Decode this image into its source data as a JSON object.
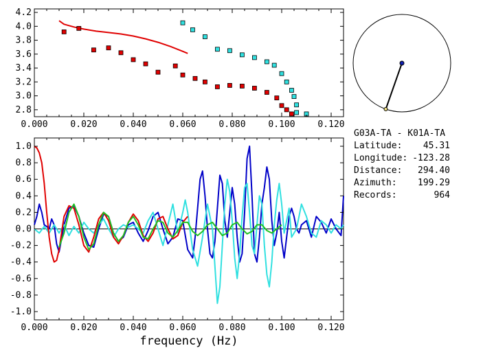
{
  "chart_data": [
    {
      "type": "scatter",
      "name": "dispersion-panel",
      "xlim": [
        0.0,
        0.125
      ],
      "ylim": [
        2.7,
        4.25
      ],
      "x_ticks": [
        "0.000",
        "0.020",
        "0.040",
        "0.060",
        "0.080",
        "0.100",
        "0.120"
      ],
      "y_ticks": [
        "2.8",
        "3.0",
        "3.2",
        "3.4",
        "3.6",
        "3.8",
        "4.0",
        "4.2"
      ],
      "series": [
        {
          "name": "red-squares",
          "color": "#e00000",
          "kind": "squares",
          "x": [
            0.012,
            0.018,
            0.024,
            0.03,
            0.035,
            0.04,
            0.045,
            0.05,
            0.057,
            0.06,
            0.065,
            0.069,
            0.074,
            0.079,
            0.084,
            0.089,
            0.094,
            0.098,
            0.1,
            0.102,
            0.104
          ],
          "y": [
            3.92,
            3.97,
            3.66,
            3.69,
            3.62,
            3.52,
            3.46,
            3.34,
            3.43,
            3.3,
            3.25,
            3.2,
            3.13,
            3.15,
            3.14,
            3.11,
            3.05,
            2.97,
            2.86,
            2.8,
            2.74
          ]
        },
        {
          "name": "cyan-squares",
          "color": "#30e0e0",
          "kind": "squares",
          "x": [
            0.06,
            0.064,
            0.069,
            0.074,
            0.079,
            0.084,
            0.089,
            0.094,
            0.097,
            0.1,
            0.102,
            0.104,
            0.105,
            0.106,
            0.106,
            0.11
          ],
          "y": [
            4.05,
            3.95,
            3.85,
            3.67,
            3.65,
            3.59,
            3.55,
            3.49,
            3.44,
            3.32,
            3.2,
            3.08,
            2.99,
            2.87,
            2.76,
            2.74
          ]
        },
        {
          "name": "red-curve",
          "color": "#e00000",
          "kind": "line",
          "x": [
            0.01,
            0.012,
            0.016,
            0.02,
            0.025,
            0.03,
            0.035,
            0.04,
            0.045,
            0.05,
            0.055,
            0.06,
            0.062
          ],
          "y": [
            4.08,
            4.03,
            3.99,
            3.96,
            3.93,
            3.91,
            3.89,
            3.86,
            3.82,
            3.77,
            3.71,
            3.64,
            3.61
          ]
        }
      ]
    },
    {
      "type": "line",
      "name": "correlation-panel",
      "xlabel": "frequency (Hz)",
      "xlim": [
        0.0,
        0.125
      ],
      "ylim": [
        -1.1,
        1.1
      ],
      "x_ticks": [
        "0.000",
        "0.020",
        "0.040",
        "0.060",
        "0.080",
        "0.100",
        "0.120"
      ],
      "y_ticks": [
        "1.0",
        "0.8",
        "0.6",
        "0.4",
        "0.2",
        "0.0",
        "-0.2",
        "-0.4",
        "-0.6",
        "-0.8",
        "-1.0"
      ],
      "series": [
        {
          "name": "blue",
          "color": "#0000c8",
          "x": [
            0.0,
            0.001,
            0.002,
            0.003,
            0.004,
            0.005,
            0.006,
            0.007,
            0.008,
            0.009,
            0.01,
            0.011,
            0.012,
            0.014,
            0.016,
            0.018,
            0.02,
            0.022,
            0.024,
            0.026,
            0.028,
            0.03,
            0.032,
            0.034,
            0.036,
            0.038,
            0.04,
            0.042,
            0.044,
            0.046,
            0.048,
            0.05,
            0.052,
            0.054,
            0.056,
            0.058,
            0.06,
            0.062,
            0.064,
            0.065,
            0.066,
            0.067,
            0.068,
            0.069,
            0.07,
            0.071,
            0.072,
            0.073,
            0.074,
            0.075,
            0.076,
            0.077,
            0.078,
            0.079,
            0.08,
            0.081,
            0.082,
            0.083,
            0.084,
            0.085,
            0.086,
            0.087,
            0.088,
            0.089,
            0.09,
            0.091,
            0.092,
            0.093,
            0.094,
            0.095,
            0.096,
            0.097,
            0.098,
            0.099,
            0.1,
            0.101,
            0.102,
            0.103,
            0.104,
            0.105,
            0.106,
            0.107,
            0.108,
            0.11,
            0.112,
            0.114,
            0.116,
            0.118,
            0.12,
            0.122,
            0.124,
            0.125
          ],
          "y": [
            0.05,
            0.15,
            0.3,
            0.2,
            0.05,
            0.03,
            0.0,
            0.12,
            0.05,
            -0.18,
            -0.28,
            -0.12,
            0.05,
            0.25,
            0.28,
            0.15,
            -0.05,
            -0.2,
            -0.22,
            0.0,
            0.18,
            0.15,
            -0.05,
            -0.15,
            -0.1,
            0.05,
            0.08,
            -0.05,
            -0.15,
            -0.02,
            0.15,
            0.2,
            0.0,
            -0.18,
            -0.1,
            0.12,
            0.1,
            -0.25,
            -0.35,
            -0.1,
            0.25,
            0.6,
            0.7,
            0.4,
            0.0,
            -0.3,
            -0.35,
            -0.15,
            0.25,
            0.65,
            0.55,
            0.1,
            -0.1,
            0.2,
            0.5,
            0.3,
            -0.1,
            -0.4,
            -0.3,
            0.2,
            0.85,
            1.0,
            0.4,
            -0.3,
            -0.4,
            -0.1,
            0.3,
            0.5,
            0.75,
            0.6,
            0.1,
            -0.2,
            -0.05,
            0.2,
            -0.15,
            -0.35,
            -0.1,
            0.15,
            0.25,
            0.15,
            0.0,
            -0.05,
            0.05,
            0.1,
            -0.1,
            0.15,
            0.08,
            -0.05,
            0.12,
            0.0,
            -0.08,
            0.4
          ]
        },
        {
          "name": "cyan",
          "color": "#30e0e0",
          "x": [
            0.0,
            0.002,
            0.004,
            0.006,
            0.008,
            0.01,
            0.012,
            0.014,
            0.016,
            0.018,
            0.02,
            0.022,
            0.024,
            0.026,
            0.028,
            0.03,
            0.032,
            0.034,
            0.036,
            0.038,
            0.04,
            0.042,
            0.044,
            0.046,
            0.048,
            0.05,
            0.052,
            0.054,
            0.056,
            0.058,
            0.06,
            0.061,
            0.062,
            0.064,
            0.066,
            0.068,
            0.07,
            0.072,
            0.073,
            0.074,
            0.075,
            0.076,
            0.077,
            0.078,
            0.079,
            0.08,
            0.081,
            0.082,
            0.083,
            0.084,
            0.085,
            0.086,
            0.087,
            0.088,
            0.089,
            0.09,
            0.091,
            0.092,
            0.093,
            0.094,
            0.095,
            0.096,
            0.097,
            0.098,
            0.099,
            0.1,
            0.101,
            0.102,
            0.103,
            0.104,
            0.106,
            0.108,
            0.11,
            0.112,
            0.114,
            0.116,
            0.118,
            0.12,
            0.122,
            0.124,
            0.125
          ],
          "y": [
            0.0,
            -0.05,
            0.03,
            -0.05,
            0.05,
            -0.05,
            0.05,
            -0.08,
            0.03,
            -0.05,
            0.08,
            0.0,
            -0.05,
            0.05,
            0.12,
            0.0,
            -0.1,
            0.0,
            0.05,
            0.02,
            0.05,
            0.0,
            -0.05,
            0.1,
            0.2,
            0.0,
            -0.2,
            0.05,
            0.3,
            -0.05,
            0.2,
            0.35,
            0.2,
            -0.25,
            -0.45,
            -0.1,
            0.3,
            0.0,
            -0.45,
            -0.9,
            -0.7,
            -0.2,
            0.3,
            0.6,
            0.45,
            0.1,
            -0.35,
            -0.6,
            -0.3,
            0.15,
            0.5,
            0.55,
            0.2,
            -0.2,
            -0.3,
            0.05,
            0.4,
            0.3,
            -0.2,
            -0.55,
            -0.7,
            -0.4,
            0.05,
            0.35,
            0.55,
            0.3,
            -0.05,
            0.1,
            0.25,
            -0.1,
            0.0,
            0.3,
            0.15,
            -0.05,
            -0.1,
            0.1,
            0.05,
            -0.05,
            0.05,
            0.0,
            0.05
          ]
        },
        {
          "name": "red",
          "color": "#e00000",
          "x": [
            0.0,
            0.001,
            0.002,
            0.003,
            0.004,
            0.005,
            0.006,
            0.007,
            0.008,
            0.009,
            0.01,
            0.011,
            0.012,
            0.014,
            0.016,
            0.018,
            0.02,
            0.022,
            0.024,
            0.026,
            0.028,
            0.03,
            0.032,
            0.034,
            0.036,
            0.038,
            0.04,
            0.042,
            0.044,
            0.046,
            0.048,
            0.05,
            0.052,
            0.054,
            0.056,
            0.058,
            0.06,
            0.062
          ],
          "y": [
            1.0,
            0.98,
            0.92,
            0.8,
            0.55,
            0.2,
            -0.1,
            -0.3,
            -0.4,
            -0.38,
            -0.25,
            -0.05,
            0.15,
            0.28,
            0.25,
            0.05,
            -0.2,
            -0.28,
            -0.1,
            0.12,
            0.2,
            0.1,
            -0.1,
            -0.18,
            -0.08,
            0.08,
            0.18,
            0.1,
            -0.08,
            -0.15,
            -0.05,
            0.12,
            0.15,
            0.0,
            -0.12,
            -0.08,
            0.08,
            0.15
          ]
        },
        {
          "name": "green",
          "color": "#20c020",
          "x": [
            0.01,
            0.012,
            0.014,
            0.016,
            0.018,
            0.02,
            0.022,
            0.024,
            0.026,
            0.028,
            0.03,
            0.032,
            0.034,
            0.036,
            0.038,
            0.04,
            0.042,
            0.044,
            0.046,
            0.048,
            0.05,
            0.052,
            0.054,
            0.056,
            0.058,
            0.06,
            0.062,
            0.064,
            0.066,
            0.068,
            0.07,
            0.072,
            0.074,
            0.076,
            0.078,
            0.08,
            0.082,
            0.084,
            0.086,
            0.088,
            0.09,
            0.092,
            0.094,
            0.096,
            0.098,
            0.1
          ],
          "y": [
            -0.22,
            -0.05,
            0.2,
            0.3,
            0.15,
            -0.1,
            -0.25,
            -0.18,
            0.05,
            0.2,
            0.15,
            -0.05,
            -0.15,
            -0.08,
            0.08,
            0.15,
            0.05,
            -0.1,
            -0.12,
            0.0,
            0.1,
            0.08,
            -0.05,
            -0.1,
            -0.02,
            0.08,
            0.08,
            -0.03,
            -0.08,
            -0.03,
            0.05,
            0.08,
            0.0,
            -0.08,
            -0.05,
            0.05,
            0.08,
            0.0,
            -0.06,
            -0.03,
            0.05,
            0.05,
            -0.02,
            -0.05,
            0.0,
            0.05
          ]
        }
      ]
    }
  ],
  "azimuth_inset": {
    "azimuth_deg": 199.29
  },
  "station_info": {
    "pair": "G03A-TA  - K01A-TA",
    "latitude_label": "Latitude:",
    "latitude_value": "45.31",
    "longitude_label": "Longitude:",
    "longitude_value": "-123.28",
    "distance_label": "Distance:",
    "distance_value": "294.40",
    "azimuth_label": "Azimuth:",
    "azimuth_value": "199.29",
    "records_label": "Records:",
    "records_value": "964"
  }
}
